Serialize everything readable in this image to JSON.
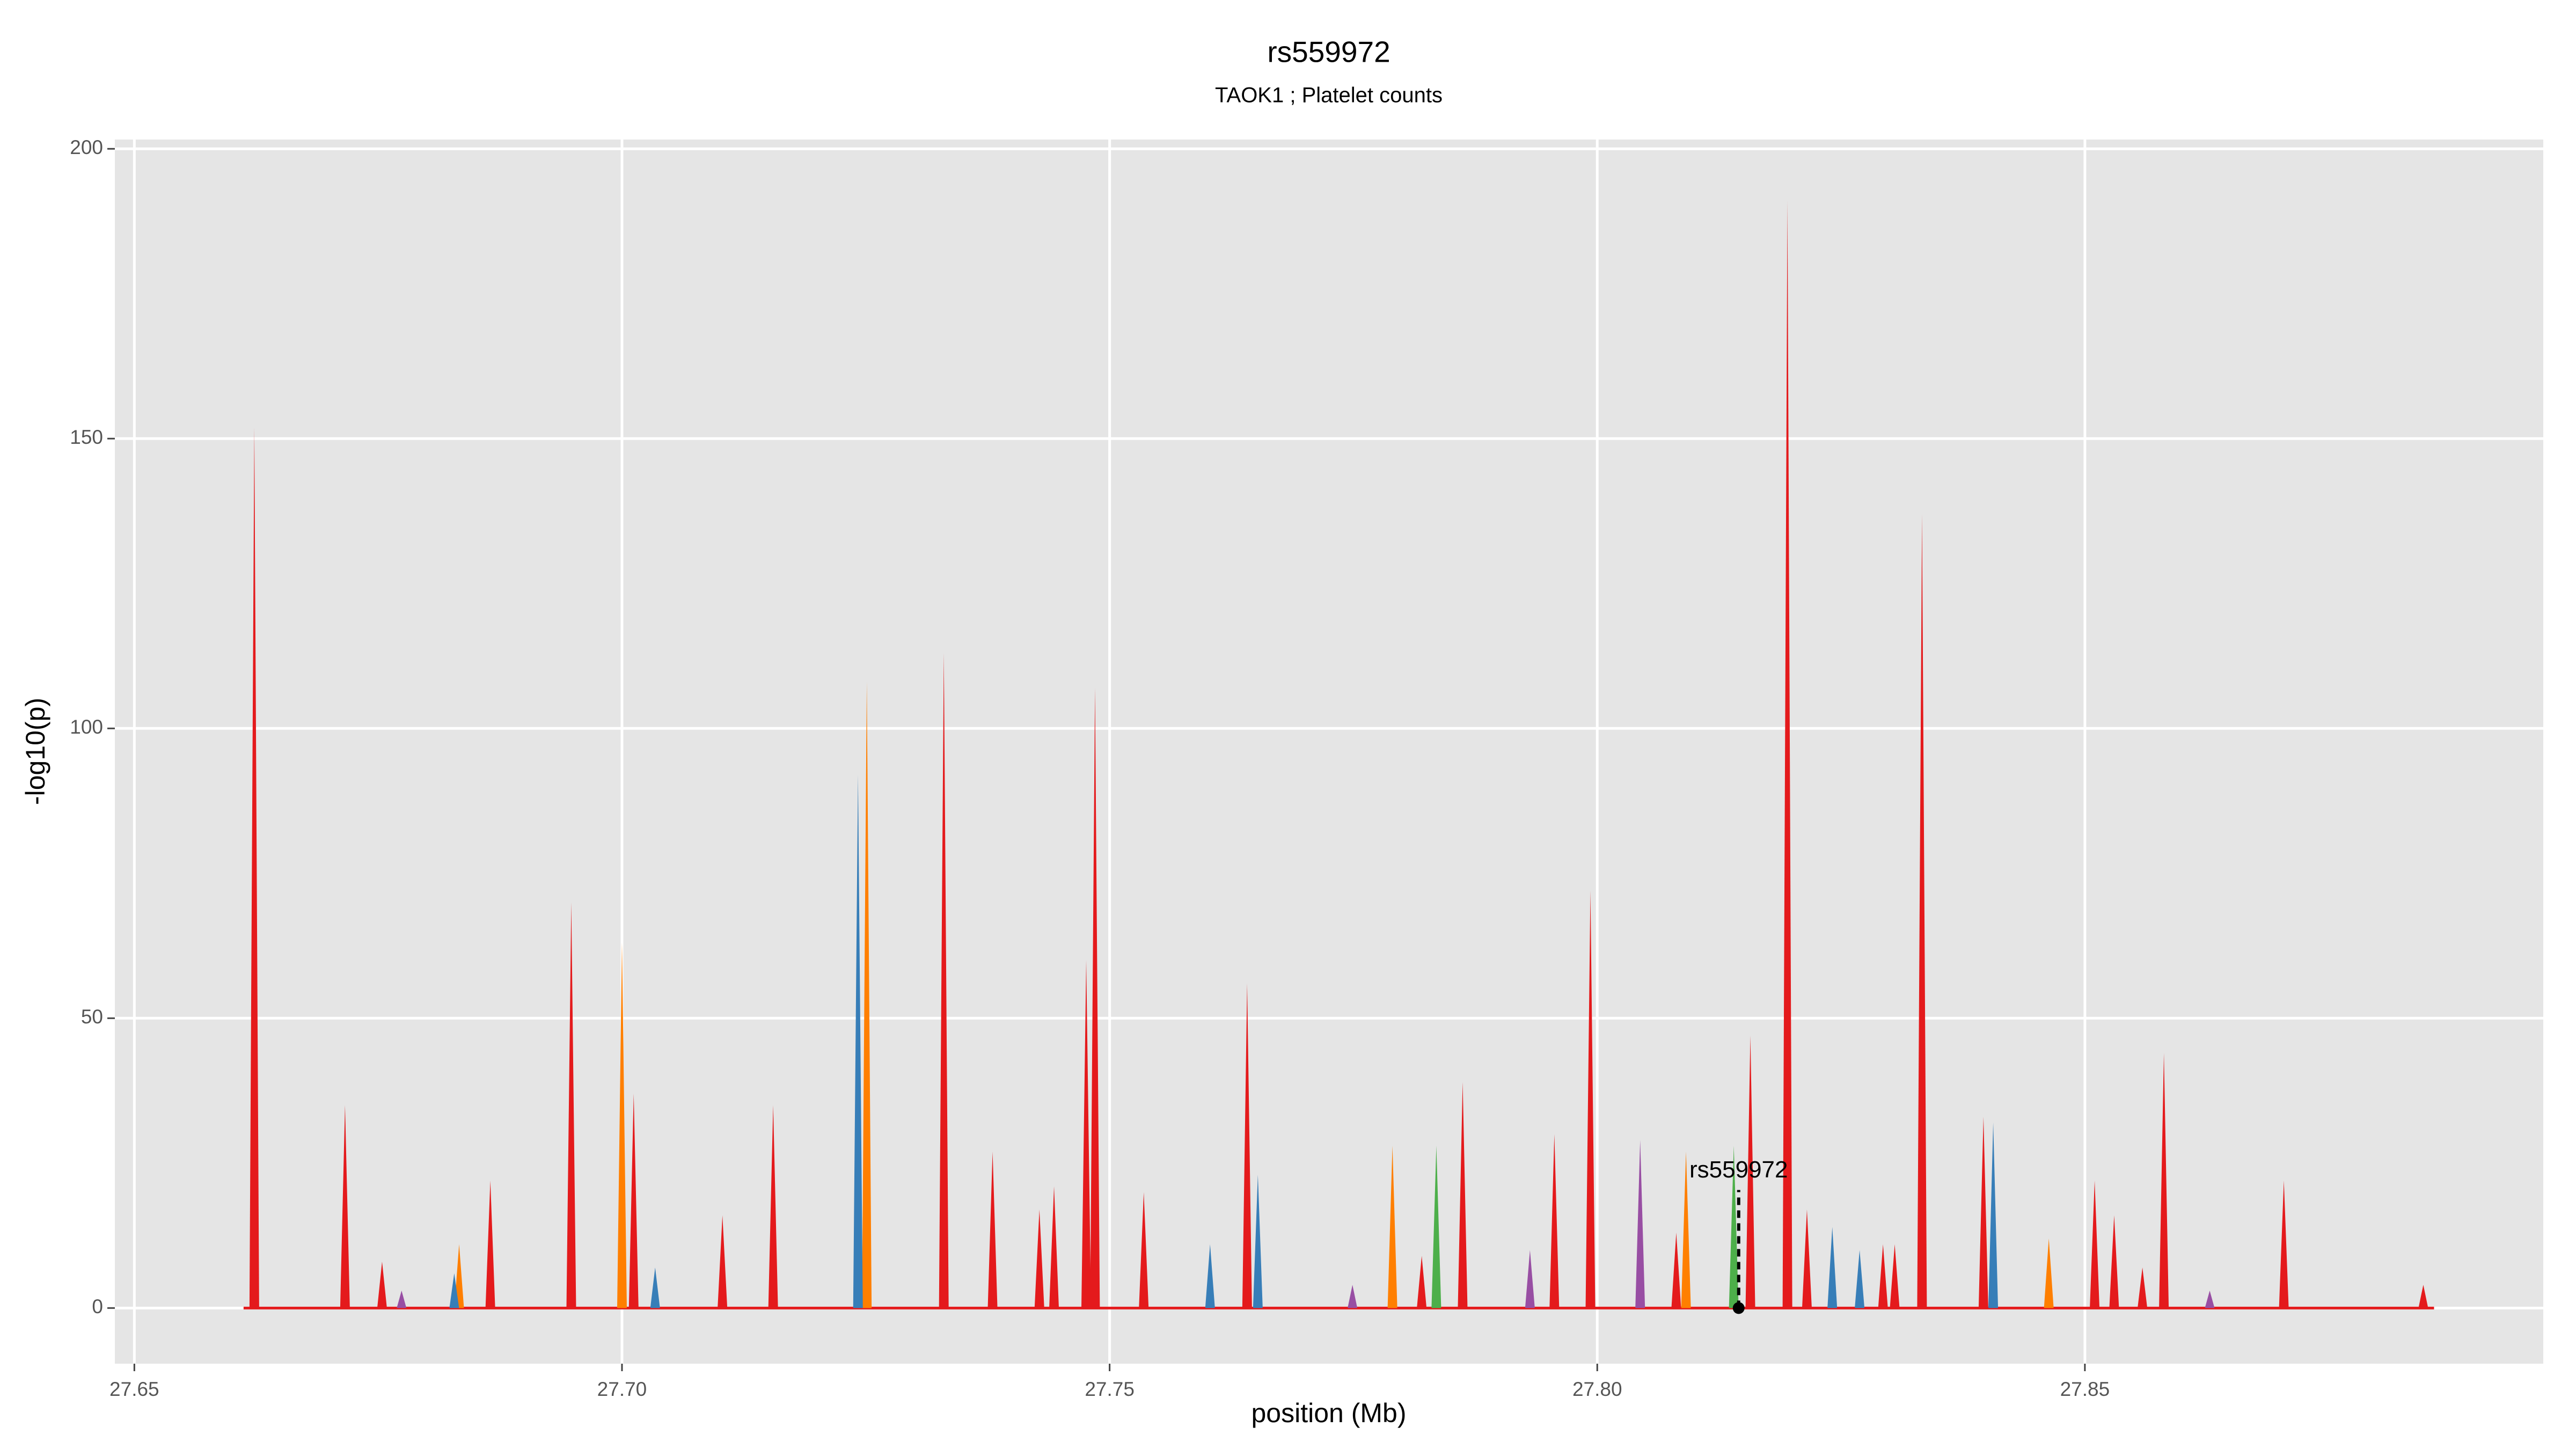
{
  "chart_data": {
    "type": "spike",
    "title": "rs559972",
    "subtitle": "TAOK1 ; Platelet counts",
    "xlabel": "position (Mb)",
    "ylabel": "-log10(p)",
    "xlim": [
      27.648,
      27.897
    ],
    "ylim": [
      -9.6,
      201.6
    ],
    "xticks": [
      {
        "value": 27.65,
        "label": "27.65"
      },
      {
        "value": 27.7,
        "label": "27.70"
      },
      {
        "value": 27.75,
        "label": "27.75"
      },
      {
        "value": 27.8,
        "label": "27.80"
      },
      {
        "value": 27.85,
        "label": "27.85"
      }
    ],
    "yticks": [
      0,
      50,
      100,
      150,
      200
    ],
    "grid": true,
    "series": [
      {
        "color": "#ff7f00",
        "x": [
          27.6833,
          27.7,
          27.7251,
          27.779,
          27.8091,
          27.8463
        ],
        "values": [
          11,
          63,
          108,
          28,
          27,
          12
        ]
      },
      {
        "color": "#377eb8",
        "x": [
          27.6828,
          27.7034,
          27.7242,
          27.7603,
          27.7652,
          27.8241,
          27.8269,
          27.8406
        ],
        "values": [
          6,
          7,
          92,
          11,
          23,
          14,
          10,
          32
        ]
      },
      {
        "color": "#984ea3",
        "x": [
          27.6774,
          27.7749,
          27.7931,
          27.8044,
          27.8628
        ],
        "values": [
          3,
          4,
          10,
          29,
          3
        ]
      },
      {
        "color": "#4daf4a",
        "x": [
          27.7835,
          27.814
        ],
        "values": [
          28,
          28
        ]
      },
      {
        "color": "#e41a1c",
        "x": [
          27.6623,
          27.6716,
          27.6754,
          27.6865,
          27.6948,
          27.7012,
          27.7103,
          27.7155,
          27.733,
          27.738,
          27.7428,
          27.7443,
          27.7476,
          27.7485,
          27.7535,
          27.7641,
          27.782,
          27.7862,
          27.7956,
          27.7993,
          27.8081,
          27.8157,
          27.8195,
          27.8215,
          27.8293,
          27.8305,
          27.8333,
          27.8396,
          27.851,
          27.853,
          27.8559,
          27.8581,
          27.8704,
          27.8847
        ],
        "values": [
          152,
          35,
          8,
          22,
          70,
          37,
          16,
          35,
          113,
          27,
          17,
          21,
          60,
          107,
          20,
          56,
          9,
          39,
          30,
          72,
          13,
          47,
          191,
          17,
          11,
          11,
          137,
          33,
          22,
          16,
          7,
          44,
          22,
          4
        ]
      }
    ],
    "annotation": {
      "text": "rs559972",
      "x": 27.8145,
      "y": 0
    }
  }
}
